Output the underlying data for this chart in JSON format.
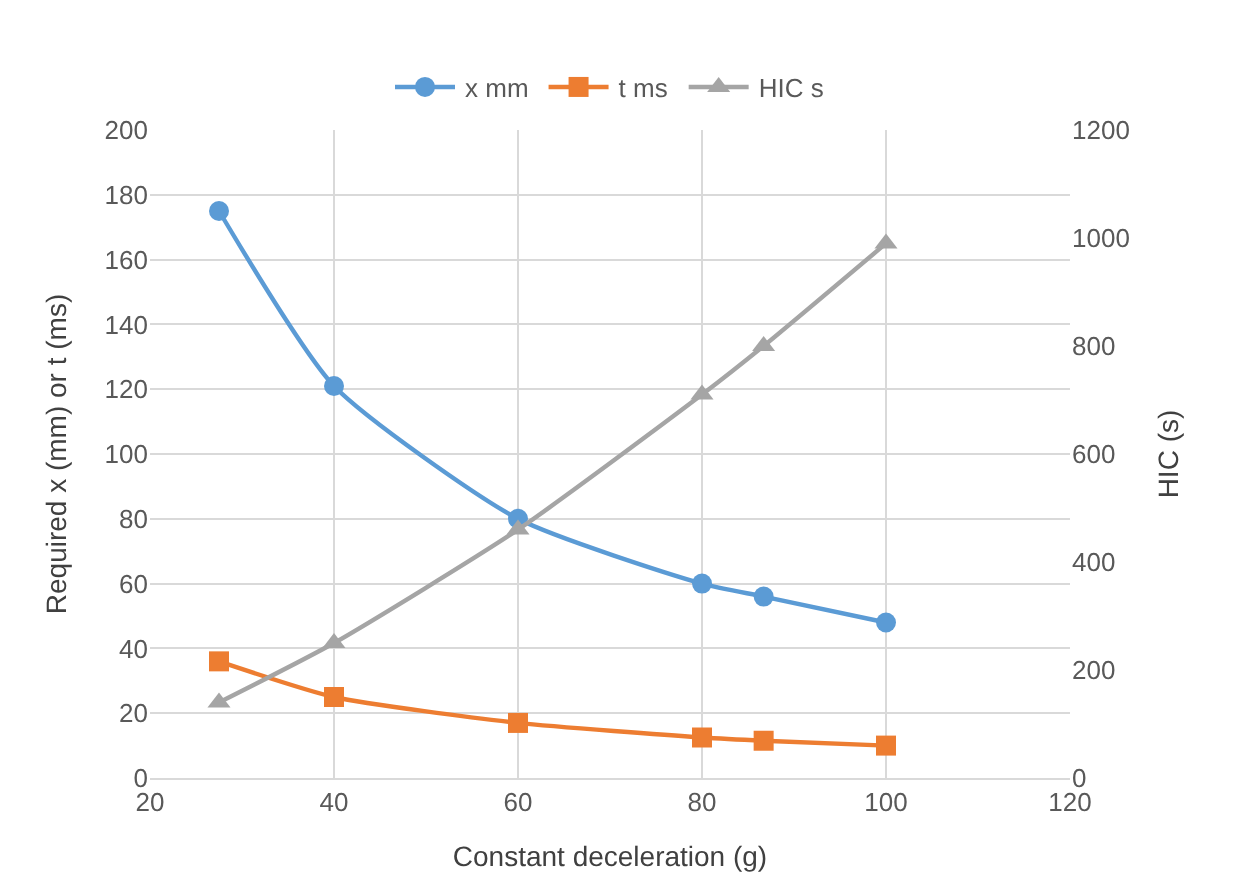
{
  "chart_data": {
    "type": "line",
    "xlabel": "Constant deceleration (g)",
    "ylabel": "Required x (mm) or t (ms)",
    "y2label": "HIC (s)",
    "x": [
      27.5,
      40,
      60,
      80,
      86.7,
      100
    ],
    "series": [
      {
        "name": "x mm",
        "color": "#5b9bd5",
        "marker": "circle",
        "values": [
          175,
          121,
          80,
          60,
          56,
          48
        ]
      },
      {
        "name": "t ms",
        "color": "#ed7d31",
        "marker": "square",
        "values": [
          36,
          25,
          17,
          12.5,
          11.5,
          10
        ]
      },
      {
        "name": "HIC s",
        "color": "#a5a5a5",
        "marker": "triangle",
        "axis": "y2",
        "values": [
          140,
          250,
          460,
          710,
          800,
          990
        ]
      }
    ],
    "xlim": [
      20,
      120
    ],
    "xticks": [
      20,
      40,
      60,
      80,
      100,
      120
    ],
    "ylim": [
      0,
      200
    ],
    "yticks": [
      0,
      20,
      40,
      60,
      80,
      100,
      120,
      140,
      160,
      180,
      200
    ],
    "y2lim": [
      0,
      1200
    ],
    "y2ticks": [
      0,
      200,
      400,
      600,
      800,
      1000,
      1200
    ],
    "grid": true,
    "legend": "top"
  }
}
